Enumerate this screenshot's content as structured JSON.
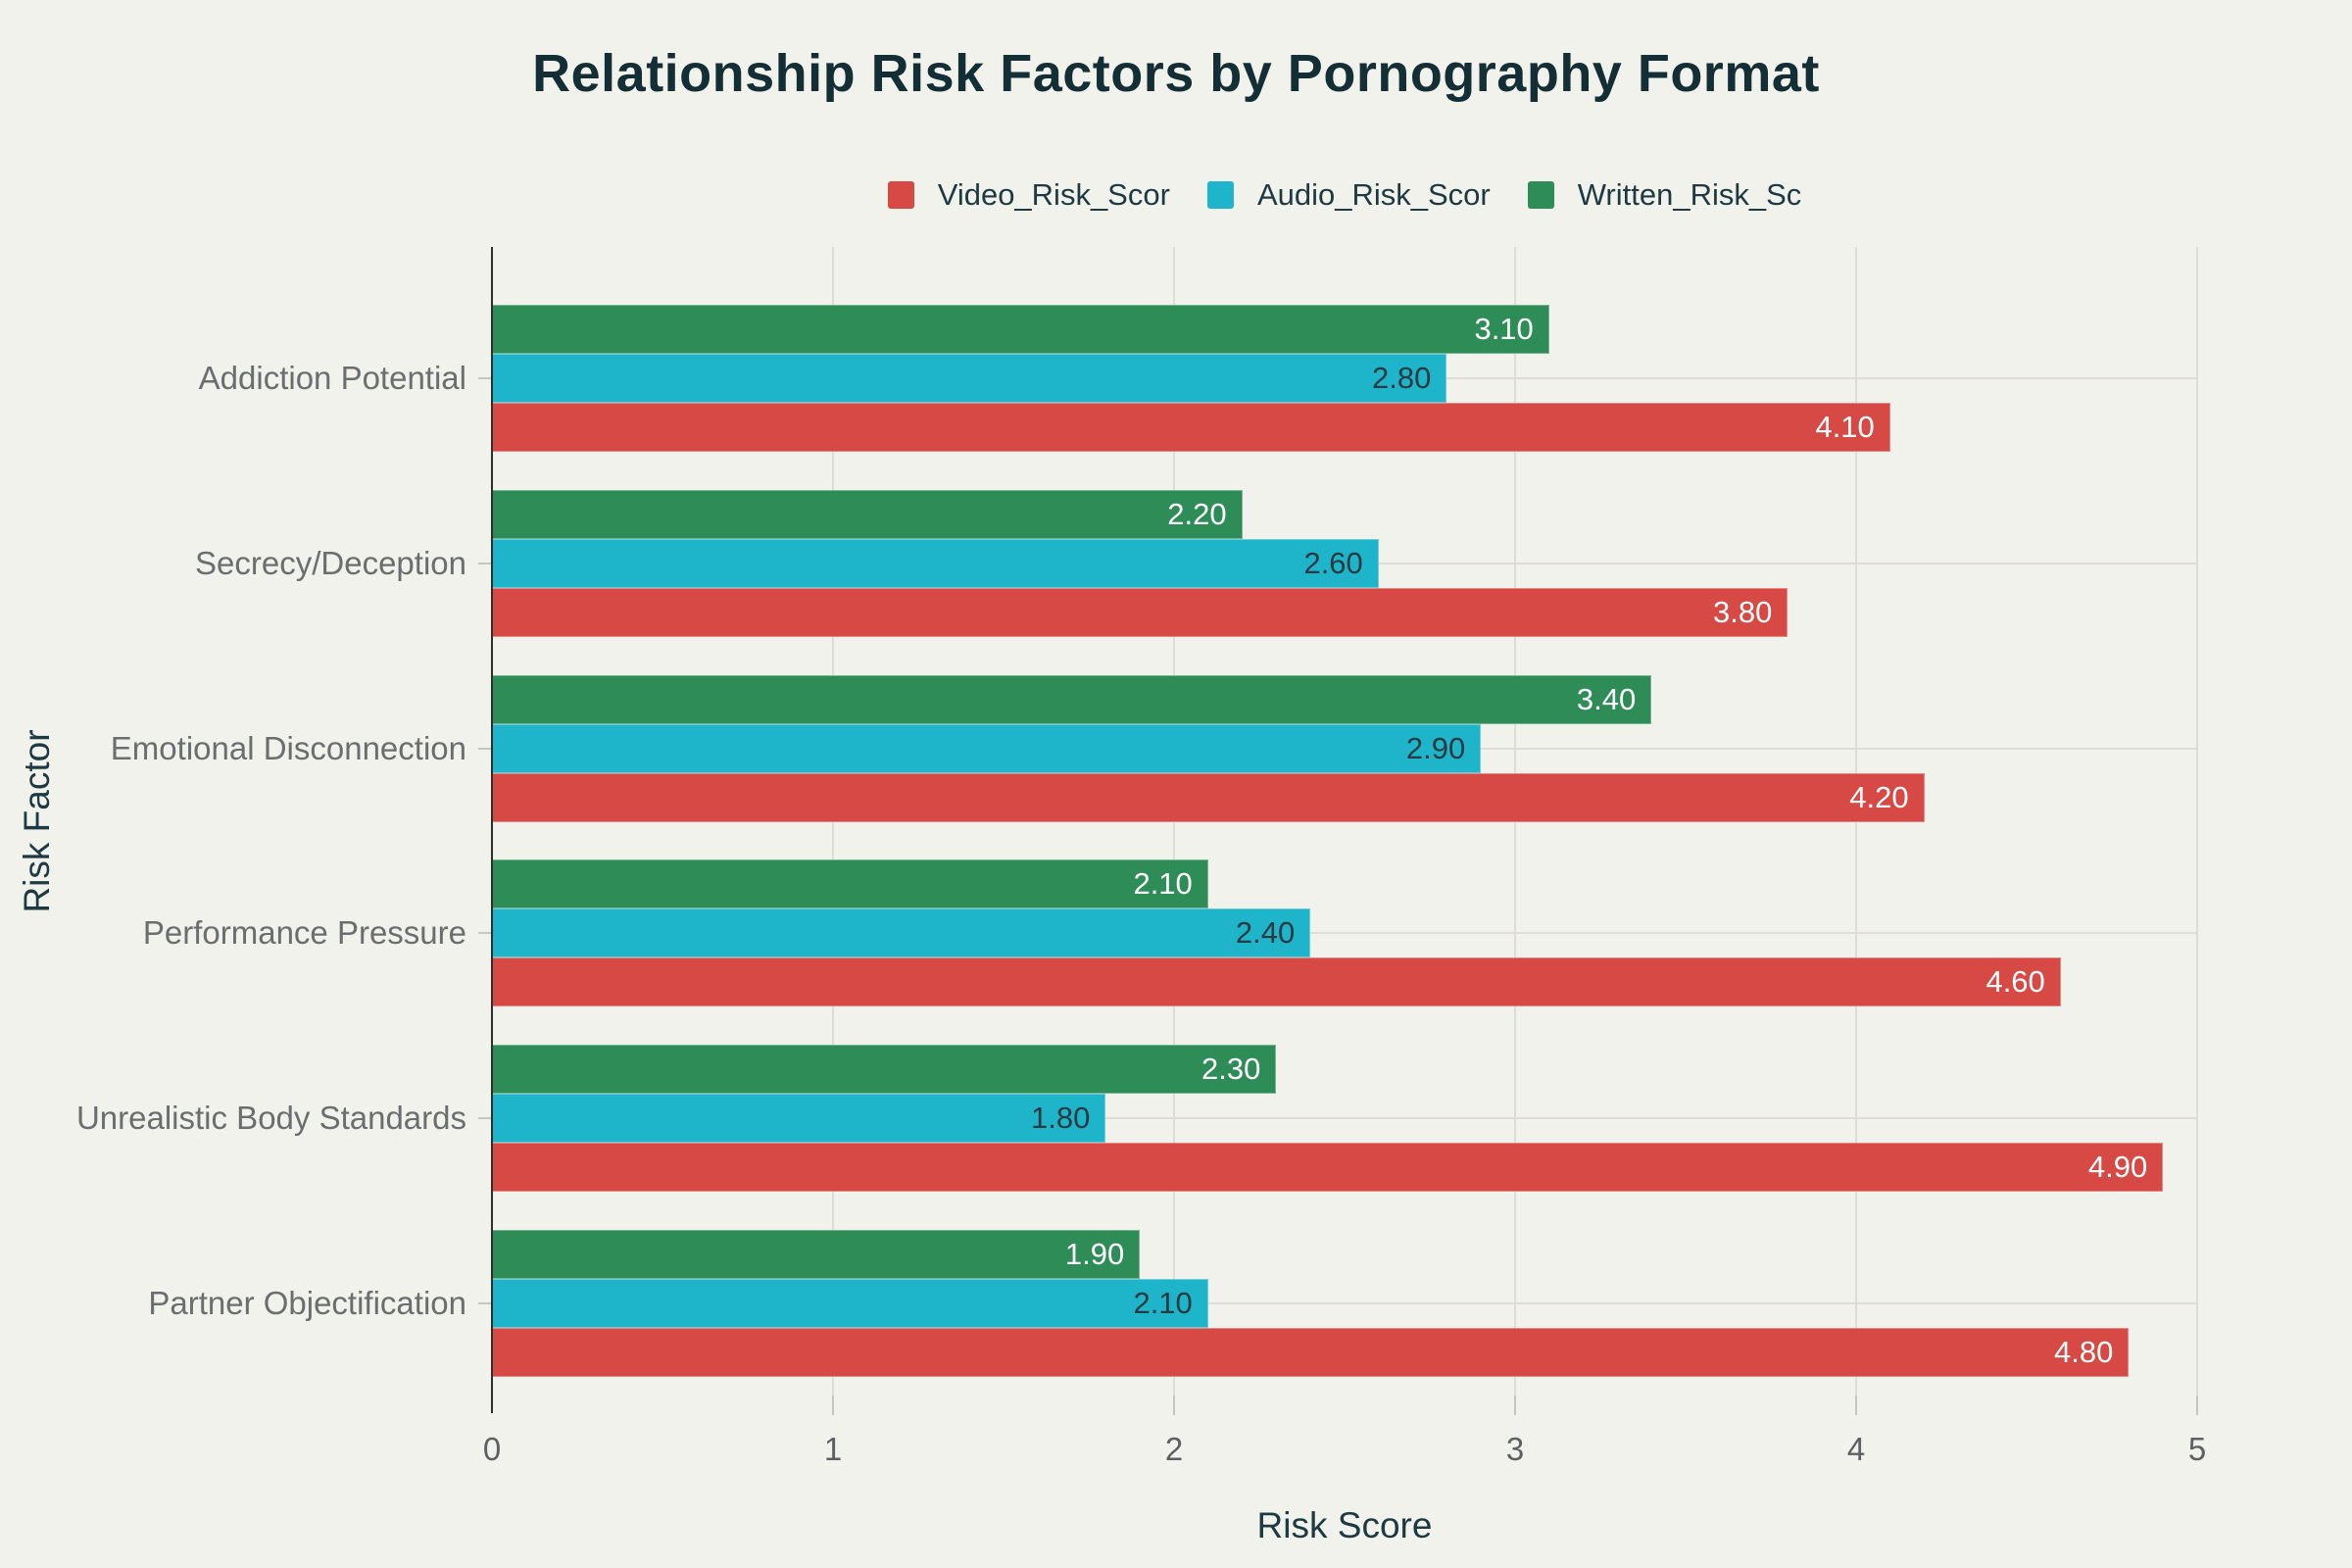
{
  "title": "Relationship Risk Factors by Pornography Format",
  "colors": {
    "background": "#f2f2ec",
    "title_text": "#142e36",
    "axis_title_text": "#1d3a42",
    "legend_text": "#1d3a42",
    "category_text": "#6a6e6e",
    "tick_label_text": "#5c6062",
    "grid": "#dedcd4",
    "spine": "#2e2e2e",
    "tick_mark": "#c7c5bc",
    "video_series": "#d64944",
    "audio_series": "#1eb4ca",
    "written_series": "#2e8c57"
  },
  "chart_data": {
    "type": "bar",
    "orientation": "horizontal",
    "title": "Relationship Risk Factors by Pornography Format",
    "xlabel": "Risk Score",
    "ylabel": "Risk Factor",
    "xlim": [
      0,
      5
    ],
    "x_ticks": [
      "0",
      "1",
      "2",
      "3",
      "4",
      "5"
    ],
    "grid": true,
    "legend_position": "top-center",
    "categories": [
      "Addiction Potential",
      "Secrecy/Deception",
      "Emotional Disconnection",
      "Performance Pressure",
      "Unrealistic Body Standards",
      "Partner Objectification"
    ],
    "series": [
      {
        "name": "Video_Risk_Scor",
        "color": "#d64944",
        "label_color": "#ffffff",
        "values": [
          4.1,
          3.8,
          4.2,
          4.6,
          4.9,
          4.8
        ],
        "labels": [
          "4.10",
          "3.80",
          "4.20",
          "4.60",
          "4.90",
          "4.80"
        ]
      },
      {
        "name": "Audio_Risk_Scor",
        "color": "#1eb4ca",
        "label_color": "#2b3940",
        "values": [
          2.8,
          2.6,
          2.9,
          2.4,
          1.8,
          2.1
        ],
        "labels": [
          "2.80",
          "2.60",
          "2.90",
          "2.40",
          "1.80",
          "2.10"
        ]
      },
      {
        "name": "Written_Risk_Sc",
        "color": "#2e8c57",
        "label_color": "#ffffff",
        "values": [
          3.1,
          2.2,
          3.4,
          2.1,
          2.3,
          1.9
        ],
        "labels": [
          "3.10",
          "2.20",
          "3.40",
          "2.10",
          "2.30",
          "1.90"
        ]
      }
    ],
    "bar_row_order_top_to_bottom": [
      "Written_Risk_Sc",
      "Audio_Risk_Scor",
      "Video_Risk_Scor"
    ]
  }
}
